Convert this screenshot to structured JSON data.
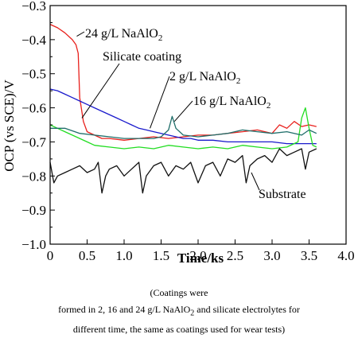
{
  "chart_data": {
    "type": "line",
    "xlabel": "Time/ks",
    "ylabel": "OCP (vs SCE)/V",
    "xlim": [
      0,
      4.0
    ],
    "ylim": [
      -1.0,
      -0.3
    ],
    "x_ticks": [
      0,
      0.5,
      1.0,
      1.5,
      2.0,
      2.5,
      3.0,
      3.5,
      4.0
    ],
    "x_tick_labels": [
      "0",
      "0.5",
      "1.0",
      "1.5",
      "2.0",
      "2.5",
      "3.0",
      "3.5",
      "4.0"
    ],
    "y_ticks": [
      -1.0,
      -0.9,
      -0.8,
      -0.7,
      -0.6,
      -0.5,
      -0.4,
      -0.3
    ],
    "y_tick_labels": [
      "−1.0",
      "−0.9",
      "−0.8",
      "−0.7",
      "−0.6",
      "−0.5",
      "−0.4",
      "−0.3"
    ],
    "grid": false,
    "series": [
      {
        "name": "24 g/L NaAlO2",
        "color": "#e8201c",
        "x": [
          0,
          0.1,
          0.2,
          0.3,
          0.35,
          0.38,
          0.4,
          0.45,
          0.5,
          0.6,
          0.7,
          0.8,
          1.0,
          1.2,
          1.4,
          1.6,
          1.8,
          2.0,
          2.2,
          2.4,
          2.6,
          2.8,
          3.0,
          3.1,
          3.2,
          3.3,
          3.4,
          3.5,
          3.6
        ],
        "y": [
          -0.355,
          -0.365,
          -0.38,
          -0.4,
          -0.415,
          -0.44,
          -0.57,
          -0.64,
          -0.67,
          -0.68,
          -0.69,
          -0.69,
          -0.695,
          -0.69,
          -0.685,
          -0.69,
          -0.685,
          -0.68,
          -0.68,
          -0.675,
          -0.67,
          -0.665,
          -0.675,
          -0.65,
          -0.66,
          -0.64,
          -0.655,
          -0.65,
          -0.655
        ]
      },
      {
        "name": "Silicate coating",
        "color": "#1a1acc",
        "x": [
          0,
          0.1,
          0.2,
          0.3,
          0.4,
          0.5,
          0.6,
          0.7,
          0.8,
          0.9,
          1.0,
          1.1,
          1.2,
          1.3,
          1.4,
          1.5,
          1.6,
          1.7,
          1.8,
          1.9,
          2.0,
          2.2,
          2.4,
          2.6,
          2.8,
          3.0,
          3.2,
          3.4,
          3.6
        ],
        "y": [
          -0.545,
          -0.55,
          -0.56,
          -0.57,
          -0.58,
          -0.59,
          -0.6,
          -0.61,
          -0.62,
          -0.63,
          -0.64,
          -0.65,
          -0.66,
          -0.665,
          -0.67,
          -0.675,
          -0.68,
          -0.685,
          -0.69,
          -0.69,
          -0.695,
          -0.695,
          -0.7,
          -0.7,
          -0.7,
          -0.7,
          -0.705,
          -0.705,
          -0.705
        ]
      },
      {
        "name": "2 g/L NaAlO2",
        "color": "#22dd22",
        "x": [
          0,
          0.1,
          0.2,
          0.3,
          0.4,
          0.5,
          0.6,
          0.8,
          1.0,
          1.2,
          1.4,
          1.6,
          1.8,
          2.0,
          2.2,
          2.4,
          2.6,
          2.8,
          3.0,
          3.2,
          3.35,
          3.4,
          3.45,
          3.5,
          3.55,
          3.6
        ],
        "y": [
          -0.65,
          -0.66,
          -0.67,
          -0.68,
          -0.69,
          -0.7,
          -0.71,
          -0.715,
          -0.72,
          -0.715,
          -0.72,
          -0.71,
          -0.715,
          -0.72,
          -0.715,
          -0.72,
          -0.71,
          -0.715,
          -0.72,
          -0.715,
          -0.7,
          -0.63,
          -0.6,
          -0.66,
          -0.71,
          -0.715
        ]
      },
      {
        "name": "16 g/L NaAlO2",
        "color": "#1f6e6a",
        "x": [
          0,
          0.2,
          0.4,
          0.6,
          0.8,
          1.0,
          1.2,
          1.4,
          1.5,
          1.6,
          1.65,
          1.7,
          1.8,
          2.0,
          2.2,
          2.4,
          2.6,
          2.8,
          3.0,
          3.2,
          3.4,
          3.5,
          3.6
        ],
        "y": [
          -0.66,
          -0.66,
          -0.675,
          -0.68,
          -0.685,
          -0.69,
          -0.69,
          -0.69,
          -0.685,
          -0.665,
          -0.625,
          -0.66,
          -0.68,
          -0.685,
          -0.68,
          -0.675,
          -0.665,
          -0.67,
          -0.675,
          -0.67,
          -0.68,
          -0.665,
          -0.675
        ]
      },
      {
        "name": "Substrate",
        "color": "#111111",
        "x": [
          0,
          0.05,
          0.1,
          0.2,
          0.3,
          0.4,
          0.5,
          0.6,
          0.65,
          0.7,
          0.75,
          0.8,
          0.9,
          1.0,
          1.1,
          1.2,
          1.25,
          1.3,
          1.4,
          1.5,
          1.6,
          1.7,
          1.8,
          1.9,
          2.0,
          2.1,
          2.2,
          2.3,
          2.4,
          2.5,
          2.6,
          2.65,
          2.7,
          2.8,
          2.9,
          3.0,
          3.1,
          3.2,
          3.3,
          3.4,
          3.45,
          3.5,
          3.6
        ],
        "y": [
          -0.76,
          -0.82,
          -0.8,
          -0.79,
          -0.78,
          -0.77,
          -0.79,
          -0.78,
          -0.76,
          -0.85,
          -0.8,
          -0.78,
          -0.77,
          -0.8,
          -0.78,
          -0.76,
          -0.85,
          -0.8,
          -0.77,
          -0.76,
          -0.8,
          -0.77,
          -0.78,
          -0.76,
          -0.82,
          -0.77,
          -0.76,
          -0.8,
          -0.75,
          -0.76,
          -0.74,
          -0.82,
          -0.77,
          -0.75,
          -0.74,
          -0.76,
          -0.72,
          -0.74,
          -0.73,
          -0.72,
          -0.78,
          -0.73,
          -0.72
        ]
      }
    ],
    "annotations": [
      {
        "text": "24 g/L NaAlO",
        "subscript": "2",
        "series_index": 0,
        "point_at": [
          0.36,
          -0.39
        ]
      },
      {
        "text": "Silicate coating",
        "subscript": "",
        "series_index": 1,
        "point_at": [
          0.43,
          -0.63
        ]
      },
      {
        "text": "2 g/L NaAlO",
        "subscript": "2",
        "series_index": 2,
        "point_at": [
          1.35,
          -0.66
        ]
      },
      {
        "text": "16 g/L NaAlO",
        "subscript": "2",
        "series_index": 3,
        "point_at": [
          1.68,
          -0.64
        ]
      },
      {
        "text": "Substrate",
        "subscript": "",
        "series_index": 4,
        "point_at": [
          2.72,
          -0.79
        ]
      }
    ]
  },
  "caption": {
    "line1": "(Coatings were",
    "line2_before": "formed in 2, 16 and 24 g/L NaAlO",
    "line2_sub": "2",
    "line2_after": " and silicate electrolytes for",
    "line3": "different time, the same as coatings used for wear tests)"
  }
}
